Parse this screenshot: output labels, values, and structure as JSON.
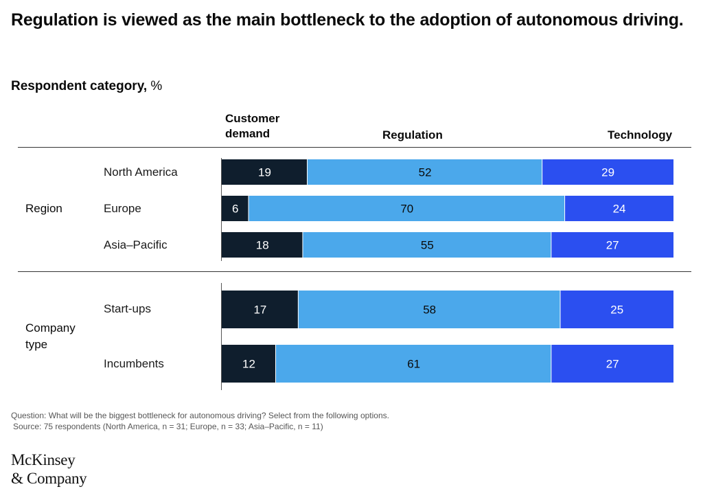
{
  "title": "Regulation is viewed as the main bottleneck to the adoption of autonomous driving.",
  "subtitle": {
    "label": "Respondent category,",
    "unit": "%"
  },
  "column_headers": {
    "customer_demand": "Customer demand",
    "regulation": "Regulation",
    "technology": "Technology"
  },
  "groups": {
    "region": "Region",
    "company_type": "Company type"
  },
  "colors": {
    "customer_demand": "#0f1e2d",
    "regulation": "#4ba8eb",
    "technology": "#2b4ff0"
  },
  "chart_data": {
    "type": "bar",
    "stacked": true,
    "orientation": "horizontal",
    "unit": "%",
    "categories": [
      "North America",
      "Europe",
      "Asia–Pacific",
      "Start-ups",
      "Incumbents"
    ],
    "category_groups": [
      "Region",
      "Region",
      "Region",
      "Company type",
      "Company type"
    ],
    "series": [
      {
        "name": "Customer demand",
        "values": [
          19,
          6,
          18,
          17,
          12
        ]
      },
      {
        "name": "Regulation",
        "values": [
          52,
          70,
          55,
          58,
          61
        ]
      },
      {
        "name": "Technology",
        "values": [
          29,
          24,
          27,
          25,
          27
        ]
      }
    ],
    "xlim": [
      0,
      100
    ]
  },
  "footnote": {
    "question": "Question: What will be the biggest bottleneck for autonomous driving? Select from the following options.",
    "source": "Source: 75 respondents (North America, n = 31; Europe, n = 33; Asia–Pacific, n = 11)"
  },
  "logo": {
    "line1": "McKinsey",
    "line2": "& Company"
  }
}
